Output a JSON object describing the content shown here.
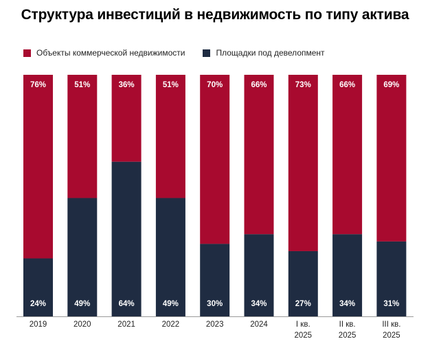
{
  "colors": {
    "commercial": "#a80a2f",
    "development": "#1f2c42",
    "axis": "#9a9a9a"
  },
  "chart_data": {
    "type": "bar",
    "stacked": true,
    "title": "Структура инвестиций в недвижимость по типу актива",
    "categories": [
      [
        "2019"
      ],
      [
        "2020"
      ],
      [
        "2021"
      ],
      [
        "2022"
      ],
      [
        "2023"
      ],
      [
        "2024"
      ],
      [
        "I кв.",
        "2025"
      ],
      [
        "II кв.",
        "2025"
      ],
      [
        "III кв.",
        "2025"
      ]
    ],
    "series": [
      {
        "name": "Площадки под девелопмент",
        "color_key": "development",
        "values": [
          24,
          49,
          64,
          49,
          30,
          34,
          27,
          34,
          31
        ],
        "labels": [
          "24%",
          "49%",
          "64%",
          "49%",
          "30%",
          "34%",
          "27%",
          "34%",
          "31%"
        ]
      },
      {
        "name": "Объекты коммерческой недвижимости",
        "color_key": "commercial",
        "values": [
          76,
          51,
          36,
          51,
          70,
          66,
          73,
          66,
          69
        ],
        "labels": [
          "76%",
          "51%",
          "36%",
          "51%",
          "70%",
          "66%",
          "73%",
          "66%",
          "69%"
        ]
      }
    ],
    "ylim": [
      0,
      100
    ],
    "xlabel": "",
    "ylabel": "",
    "legend": "top-left"
  }
}
